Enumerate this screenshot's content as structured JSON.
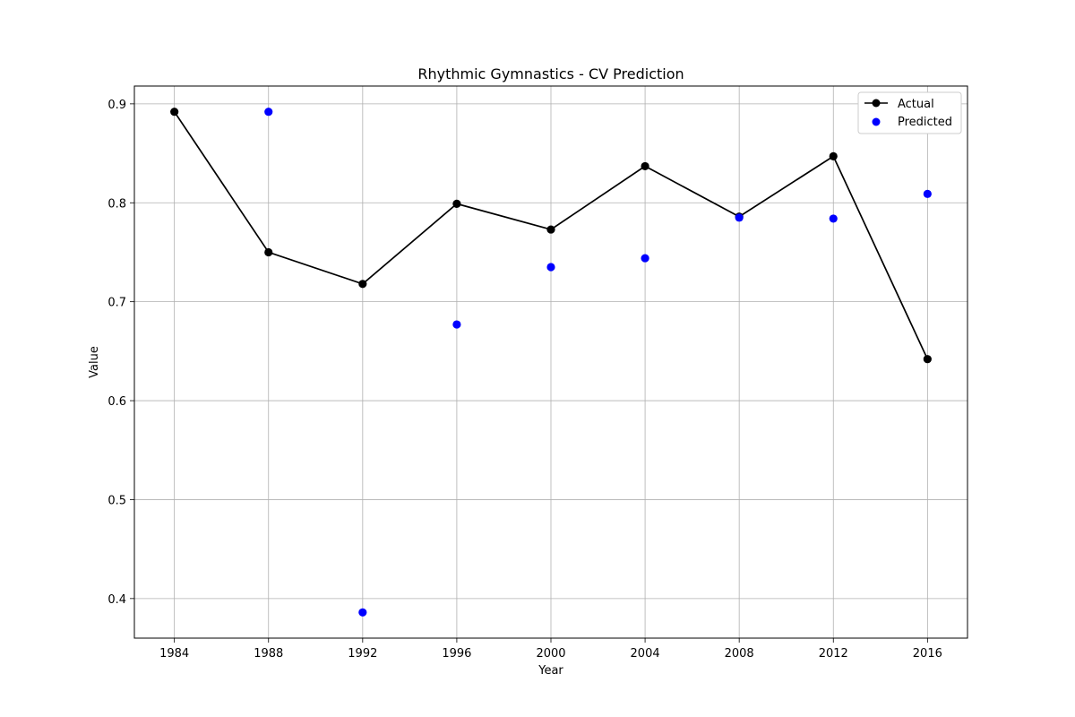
{
  "chart_data": {
    "type": "line",
    "title": "Rhythmic Gymnastics - CV Prediction",
    "xlabel": "Year",
    "ylabel": "Value",
    "x": [
      1984,
      1988,
      1992,
      1996,
      2000,
      2004,
      2008,
      2012,
      2016
    ],
    "x_ticks": [
      "1984",
      "1988",
      "1992",
      "1996",
      "2000",
      "2004",
      "2008",
      "2012",
      "2016"
    ],
    "y_ticks": [
      "0.4",
      "0.5",
      "0.6",
      "0.7",
      "0.8",
      "0.9"
    ],
    "xlim": [
      1982.3,
      2017.7
    ],
    "ylim": [
      0.36,
      0.918
    ],
    "grid": true,
    "legend_position": "top-right",
    "series": [
      {
        "name": "Actual",
        "kind": "line-marker",
        "color": "#000000",
        "values": [
          0.892,
          0.75,
          0.718,
          0.799,
          0.773,
          0.837,
          0.786,
          0.847,
          0.642
        ]
      },
      {
        "name": "Predicted",
        "kind": "scatter",
        "color": "#0000ff",
        "values": [
          null,
          0.892,
          0.386,
          0.677,
          0.735,
          0.744,
          0.785,
          0.784,
          0.809
        ]
      }
    ]
  }
}
